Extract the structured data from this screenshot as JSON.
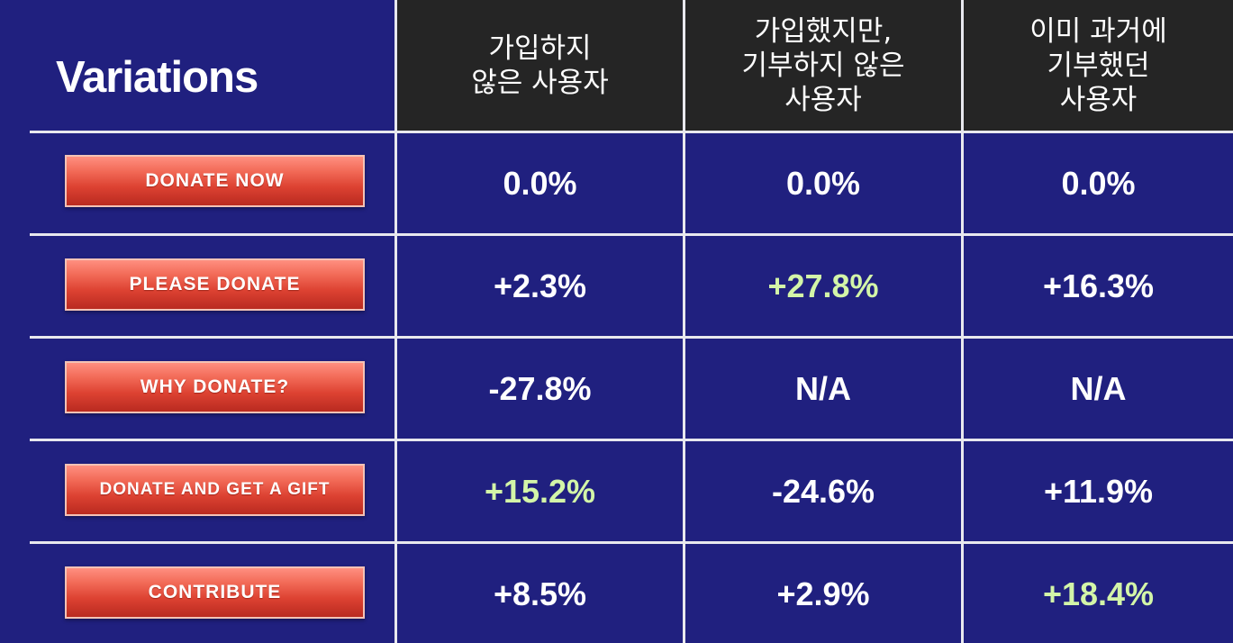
{
  "chart_data": {
    "type": "table",
    "title": "Variations",
    "columns": [
      "가입하지\n않은 사용자",
      "가입했지만,\n기부하지 않은\n사용자",
      "이미 과거에\n기부했던\n사용자"
    ],
    "rows": [
      {
        "label": "DONATE NOW",
        "values": [
          "0.0%",
          "0.0%",
          "0.0%"
        ],
        "highlight": [
          false,
          false,
          false
        ]
      },
      {
        "label": "PLEASE DONATE",
        "values": [
          "+2.3%",
          "+27.8%",
          "+16.3%"
        ],
        "highlight": [
          false,
          true,
          false
        ]
      },
      {
        "label": "WHY DONATE?",
        "values": [
          "-27.8%",
          "N/A",
          "N/A"
        ],
        "highlight": [
          false,
          false,
          false
        ]
      },
      {
        "label": "DONATE AND GET A GIFT",
        "values": [
          "+15.2%",
          "-24.6%",
          "+11.9%"
        ],
        "highlight": [
          true,
          false,
          false
        ]
      },
      {
        "label": "CONTRIBUTE",
        "values": [
          "+8.5%",
          "+2.9%",
          "+18.4%"
        ],
        "highlight": [
          false,
          false,
          true
        ]
      }
    ],
    "colors": {
      "background": "#20207f",
      "header_background": "#252525",
      "text": "#ffffff",
      "highlight_text": "#d3f5a8",
      "button": "#e0503e",
      "grid_lines": "#e8e8ee"
    }
  }
}
